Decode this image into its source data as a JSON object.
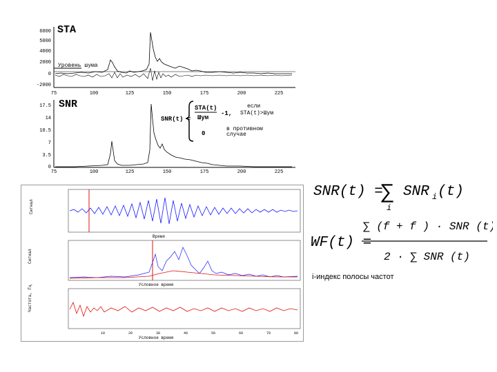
{
  "top_figure": {
    "sta_title": "STA",
    "snr_title": "SNR",
    "noise_label": "Уровень шума",
    "sta_y_ticks": [
      "6000",
      "5000",
      "4000",
      "2000",
      "0",
      "-2000"
    ],
    "x_ticks": [
      "75",
      "100",
      "125",
      "150",
      "175",
      "200",
      "225"
    ],
    "snr_y_ticks": [
      "17.5",
      "14",
      "10.5",
      "7",
      "3.5",
      "0"
    ],
    "snr_formula": {
      "lhs": "SNR(t) =",
      "fraction_num": "STA(t)",
      "fraction_den": "Шум",
      "minus_one": "-1,",
      "if_text": "если",
      "condition": "STA(t)>Шум",
      "zero": "0",
      "otherwise_1": "в противном",
      "otherwise_2": "случае"
    }
  },
  "bottom_figure": {
    "x_label_1": "Время",
    "x_label_2": "Условное время",
    "x_label_3": "Условное время",
    "y_label_1": "Сигнал",
    "y_label_2": "Сигнал",
    "y_label_3": "Частота, Гц",
    "x_ticks": [
      "10",
      "20",
      "30",
      "40",
      "50",
      "60",
      "70",
      "80"
    ]
  },
  "formulas": {
    "snr_lhs": "SNR(t) = ",
    "snr_sum": "∑",
    "snr_sub_i": "i",
    "snr_rhs": "SNR",
    "snr_rhs_sub": "i",
    "snr_rhs_arg": "(t)",
    "wf_lhs": "WF(t) =",
    "wf_num": "∑ (f  + f ) · SNR (t)",
    "wf_den": "2 · ∑ SNR (t)"
  },
  "index_note": "i-индекс полосы частот",
  "colors": {
    "signal_blue": "#1a1aff",
    "signal_red": "#e01010",
    "axis": "#000000"
  }
}
